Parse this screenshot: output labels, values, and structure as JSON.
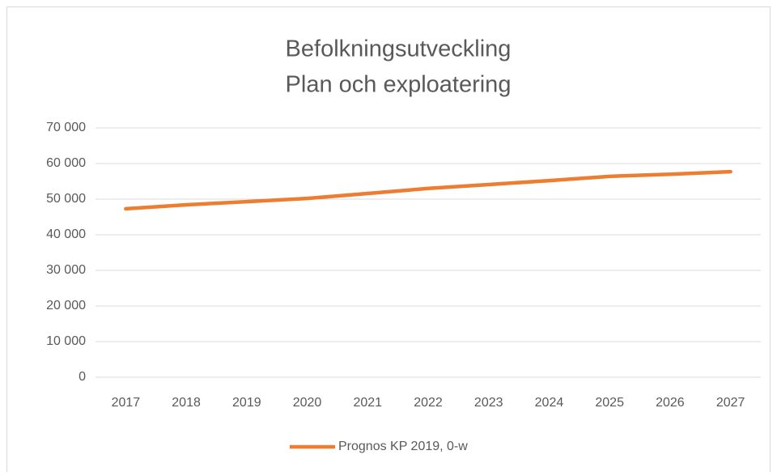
{
  "chart_data": {
    "type": "line",
    "title": "Befolkningsutveckling",
    "subtitle": "Plan och exploatering",
    "categories": [
      "2017",
      "2018",
      "2019",
      "2020",
      "2021",
      "2022",
      "2023",
      "2024",
      "2025",
      "2026",
      "2027"
    ],
    "series": [
      {
        "name": "Prognos KP 2019, 0-w",
        "color": "#ed7d31",
        "values": [
          47300,
          48400,
          49300,
          50200,
          51600,
          53000,
          54100,
          55200,
          56400,
          57000,
          57700
        ]
      }
    ],
    "ylim": [
      0,
      70000
    ],
    "yticks": [
      {
        "value": 0,
        "label": "0"
      },
      {
        "value": 10000,
        "label": "10 000"
      },
      {
        "value": 20000,
        "label": "20 000"
      },
      {
        "value": 30000,
        "label": "30 000"
      },
      {
        "value": 40000,
        "label": "40 000"
      },
      {
        "value": 50000,
        "label": "50 000"
      },
      {
        "value": 60000,
        "label": "60 000"
      },
      {
        "value": 70000,
        "label": "70 000"
      }
    ],
    "grid": true,
    "legend": "bottom"
  }
}
